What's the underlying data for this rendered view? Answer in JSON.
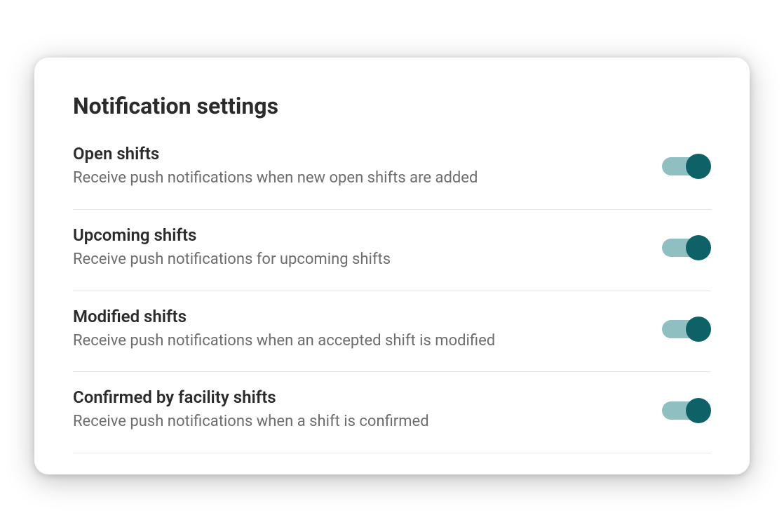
{
  "title": "Notification settings",
  "colors": {
    "toggle_track_on": "#8fbfc0",
    "toggle_thumb_on": "#0f6168",
    "title_text": "#2b2b2b",
    "desc_text": "#6d6d6d",
    "divider": "#e6e6e6",
    "card_bg": "#ffffff"
  },
  "settings": [
    {
      "key": "open-shifts",
      "title": "Open shifts",
      "description": "Receive push notifications when new open shifts are added",
      "enabled": true
    },
    {
      "key": "upcoming-shifts",
      "title": "Upcoming shifts",
      "description": "Receive push notifications for upcoming shifts",
      "enabled": true
    },
    {
      "key": "modified-shifts",
      "title": "Modified shifts",
      "description": "Receive push notifications when an accepted shift is modified",
      "enabled": true
    },
    {
      "key": "confirmed-shifts",
      "title": "Confirmed by facility shifts",
      "description": "Receive push notifications when a shift is confirmed",
      "enabled": true
    }
  ]
}
